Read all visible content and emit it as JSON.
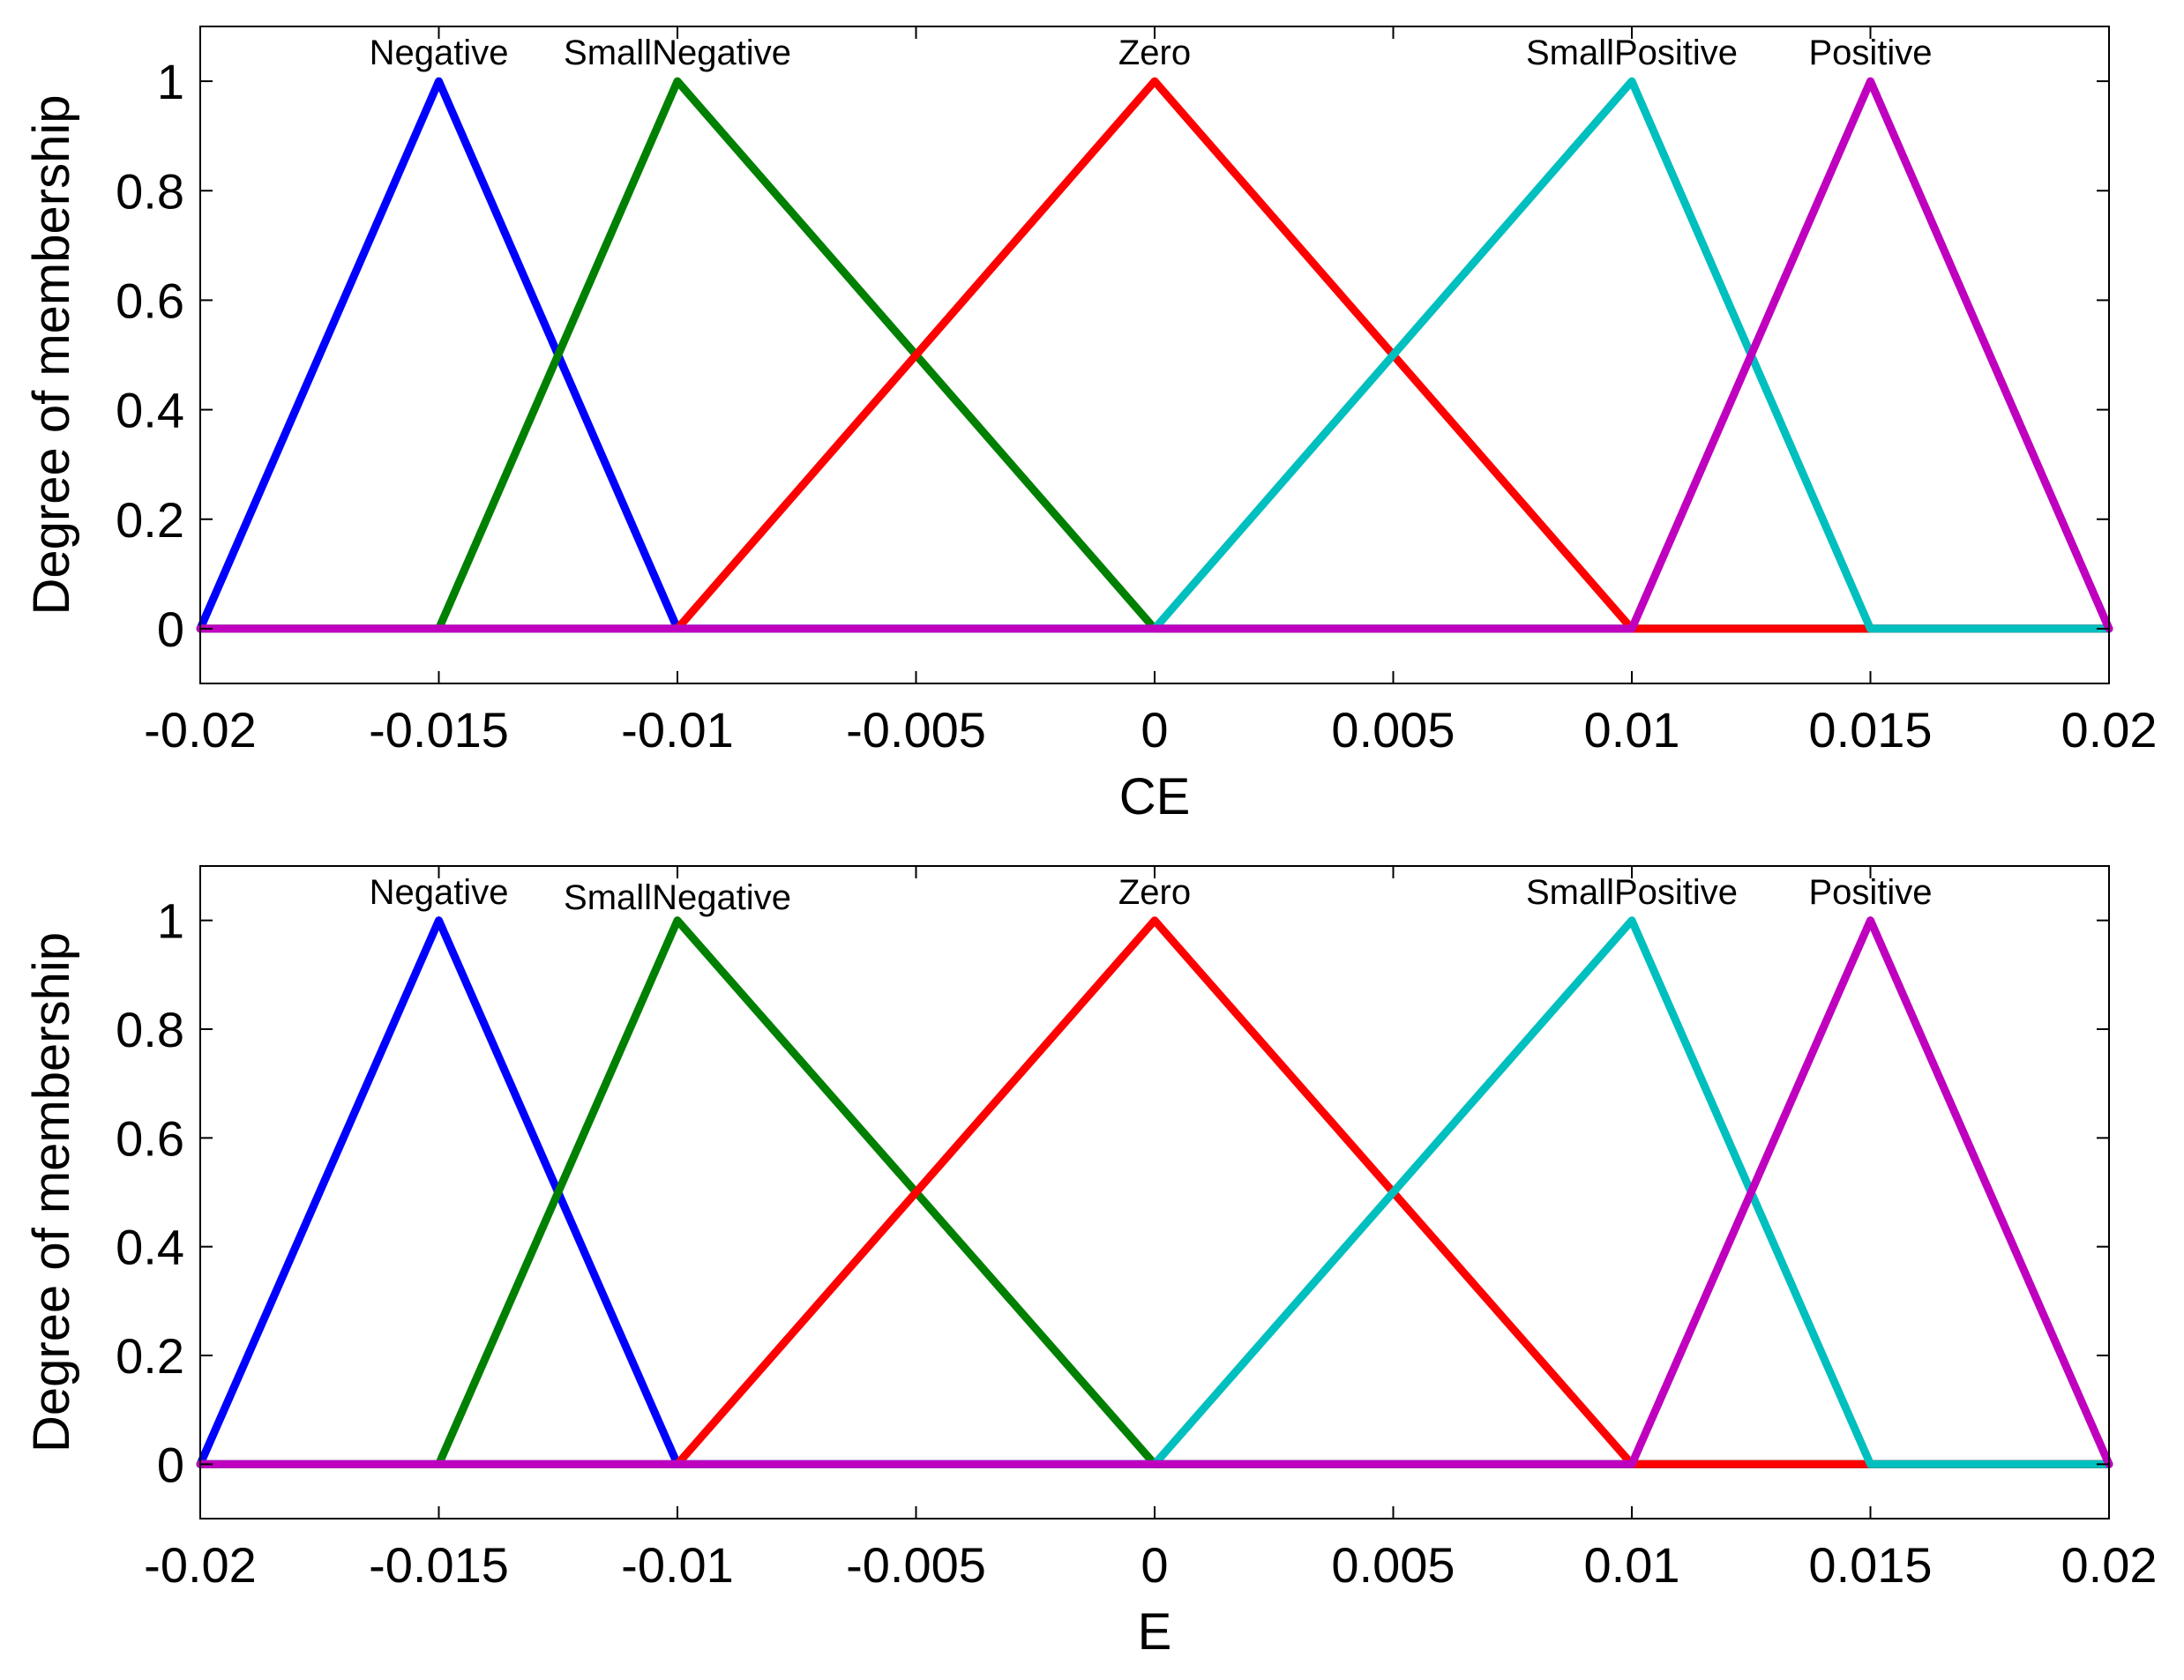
{
  "chart_data": [
    {
      "type": "line",
      "title": "",
      "xlabel": "CE",
      "ylabel": "Degree of membership",
      "xlim": [
        -0.02,
        0.02
      ],
      "ylim": [
        -0.1,
        1.1
      ],
      "grid": false,
      "x_ticks": [
        -0.02,
        -0.015,
        -0.01,
        -0.005,
        0,
        0.005,
        0.01,
        0.015,
        0.02
      ],
      "x_tick_labels": [
        "-0.02",
        "-0.015",
        "-0.01",
        "-0.005",
        "0",
        "0.005",
        "0.01",
        "0.015",
        "0.02"
      ],
      "y_ticks": [
        0,
        0.2,
        0.4,
        0.6,
        0.8,
        1
      ],
      "y_tick_labels": [
        "0",
        "0.2",
        "0.4",
        "0.6",
        "0.8",
        "1"
      ],
      "series": [
        {
          "name": "Negative",
          "color": "#0000ff",
          "x": [
            -0.02,
            -0.015,
            -0.01,
            0.02
          ],
          "y": [
            0,
            1,
            0,
            0
          ]
        },
        {
          "name": "SmallNegative",
          "color": "#008000",
          "x": [
            -0.02,
            -0.015,
            -0.01,
            0,
            0.02
          ],
          "y": [
            0,
            0,
            1,
            0,
            0
          ]
        },
        {
          "name": "Zero",
          "color": "#ff0000",
          "x": [
            -0.02,
            -0.01,
            0,
            0.01,
            0.02
          ],
          "y": [
            0,
            0,
            1,
            0,
            0
          ]
        },
        {
          "name": "SmallPositive",
          "color": "#00bfbf",
          "x": [
            -0.02,
            0,
            0.01,
            0.015,
            0.02
          ],
          "y": [
            0,
            0,
            1,
            0,
            0
          ]
        },
        {
          "name": "Positive",
          "color": "#bf00bf",
          "x": [
            -0.02,
            0.01,
            0.015,
            0.02
          ],
          "y": [
            0,
            0,
            1,
            0
          ]
        }
      ],
      "annotations": [
        {
          "text": "Negative",
          "x": -0.015,
          "y": 1.05
        },
        {
          "text": "SmallNegative",
          "x": -0.01,
          "y": 1.05
        },
        {
          "text": "Zero",
          "x": 0,
          "y": 1.05
        },
        {
          "text": "SmallPositive",
          "x": 0.01,
          "y": 1.05
        },
        {
          "text": "Positive",
          "x": 0.015,
          "y": 1.05
        }
      ]
    },
    {
      "type": "line",
      "title": "",
      "xlabel": "E",
      "ylabel": "Degree of membership",
      "xlim": [
        -0.02,
        0.02
      ],
      "ylim": [
        -0.1,
        1.1
      ],
      "grid": false,
      "x_ticks": [
        -0.02,
        -0.015,
        -0.01,
        -0.005,
        0,
        0.005,
        0.01,
        0.015,
        0.02
      ],
      "x_tick_labels": [
        "-0.02",
        "-0.015",
        "-0.01",
        "-0.005",
        "0",
        "0.005",
        "0.01",
        "0.015",
        "0.02"
      ],
      "y_ticks": [
        0,
        0.2,
        0.4,
        0.6,
        0.8,
        1
      ],
      "y_tick_labels": [
        "0",
        "0.2",
        "0.4",
        "0.6",
        "0.8",
        "1"
      ],
      "series": [
        {
          "name": "Negative",
          "color": "#0000ff",
          "x": [
            -0.02,
            -0.015,
            -0.01,
            0.02
          ],
          "y": [
            0,
            1,
            0,
            0
          ]
        },
        {
          "name": "SmallNegative",
          "color": "#008000",
          "x": [
            -0.02,
            -0.015,
            -0.01,
            0,
            0.02
          ],
          "y": [
            0,
            0,
            1,
            0,
            0
          ]
        },
        {
          "name": "Zero",
          "color": "#ff0000",
          "x": [
            -0.02,
            -0.01,
            0,
            0.01,
            0.02
          ],
          "y": [
            0,
            0,
            1,
            0,
            0
          ]
        },
        {
          "name": "SmallPositive",
          "color": "#00bfbf",
          "x": [
            -0.02,
            0,
            0.01,
            0.015,
            0.02
          ],
          "y": [
            0,
            0,
            1,
            0,
            0
          ]
        },
        {
          "name": "Positive",
          "color": "#bf00bf",
          "x": [
            -0.02,
            0.01,
            0.015,
            0.02
          ],
          "y": [
            0,
            0,
            1,
            0
          ]
        }
      ],
      "annotations": [
        {
          "text": "Negative",
          "x": -0.015,
          "y": 1.05
        },
        {
          "text": "SmallNegative",
          "x": -0.01,
          "y": 1.04
        },
        {
          "text": "Zero",
          "x": 0,
          "y": 1.05
        },
        {
          "text": "SmallPositive",
          "x": 0.01,
          "y": 1.05
        },
        {
          "text": "Positive",
          "x": 0.015,
          "y": 1.05
        }
      ]
    }
  ]
}
